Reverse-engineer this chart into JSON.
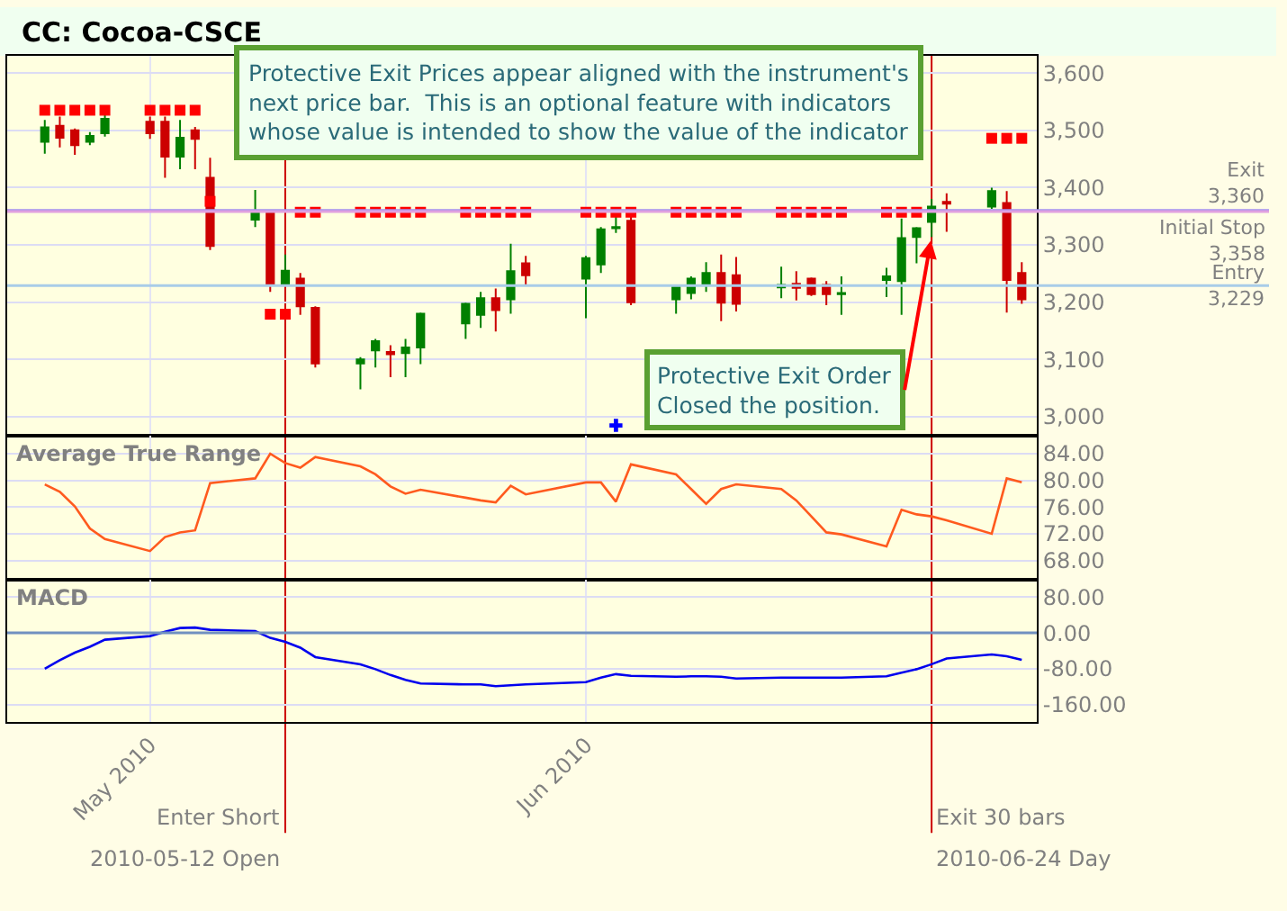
{
  "chart_data": [
    {
      "type": "candlestick",
      "title": "CC: Cocoa-CSCE",
      "x": [
        "2010-04-26",
        "2010-04-27",
        "2010-04-28",
        "2010-04-29",
        "2010-04-30",
        "2010-05-03",
        "2010-05-04",
        "2010-05-05",
        "2010-05-06",
        "2010-05-07",
        "2010-05-10",
        "2010-05-11",
        "2010-05-12",
        "2010-05-13",
        "2010-05-14",
        "2010-05-17",
        "2010-05-18",
        "2010-05-19",
        "2010-05-20",
        "2010-05-21",
        "2010-05-24",
        "2010-05-25",
        "2010-05-26",
        "2010-05-27",
        "2010-05-28",
        "2010-06-01",
        "2010-06-02",
        "2010-06-03",
        "2010-06-04",
        "2010-06-07",
        "2010-06-08",
        "2010-06-09",
        "2010-06-10",
        "2010-06-11",
        "2010-06-14",
        "2010-06-15",
        "2010-06-16",
        "2010-06-17",
        "2010-06-18",
        "2010-06-21",
        "2010-06-22",
        "2010-06-23",
        "2010-06-24",
        "2010-06-25",
        "2010-06-28",
        "2010-06-29",
        "2010-06-30"
      ],
      "ohlc": [
        [
          3480,
          3518,
          3459,
          3505
        ],
        [
          3508,
          3524,
          3470,
          3487
        ],
        [
          3500,
          3503,
          3457,
          3474
        ],
        [
          3480,
          3497,
          3474,
          3490
        ],
        [
          3495,
          3529,
          3489,
          3520
        ],
        [
          3515,
          3524,
          3485,
          3495
        ],
        [
          3515,
          3524,
          3417,
          3454
        ],
        [
          3454,
          3518,
          3432,
          3487
        ],
        [
          3500,
          3506,
          3432,
          3485
        ],
        [
          3417,
          3452,
          3291,
          3298
        ],
        [
          3344,
          3396,
          3331,
          3357
        ],
        [
          3357,
          3361,
          3218,
          3230
        ],
        [
          3230,
          3283,
          3228,
          3255
        ],
        [
          3241,
          3251,
          3178,
          3193
        ],
        [
          3190,
          3193,
          3086,
          3093
        ],
        [
          3093,
          3104,
          3048,
          3100
        ],
        [
          3116,
          3136,
          3086,
          3132
        ],
        [
          3113,
          3125,
          3069,
          3109
        ],
        [
          3111,
          3136,
          3069,
          3121
        ],
        [
          3121,
          3182,
          3092,
          3180
        ],
        [
          3163,
          3199,
          3136,
          3197
        ],
        [
          3178,
          3218,
          3155,
          3207
        ],
        [
          3207,
          3224,
          3149,
          3186
        ],
        [
          3205,
          3302,
          3180,
          3254
        ],
        [
          3268,
          3281,
          3228,
          3247
        ],
        [
          3241,
          3281,
          3172,
          3277
        ],
        [
          3266,
          3331,
          3251,
          3327
        ],
        [
          3329,
          3358,
          3321,
          3331
        ],
        [
          3342,
          3361,
          3195,
          3200
        ],
        [
          3205,
          3230,
          3180,
          3228
        ],
        [
          3216,
          3245,
          3205,
          3241
        ],
        [
          3232,
          3270,
          3218,
          3251
        ],
        [
          3251,
          3283,
          3167,
          3199
        ],
        [
          3247,
          3279,
          3184,
          3197
        ],
        [
          3226,
          3262,
          3207,
          3230
        ],
        [
          3232,
          3254,
          3203,
          3225
        ],
        [
          3241,
          3243,
          3211,
          3214
        ],
        [
          3230,
          3237,
          3195,
          3214
        ],
        [
          3214,
          3245,
          3178,
          3216
        ],
        [
          3239,
          3260,
          3209,
          3245
        ],
        [
          3237,
          3346,
          3178,
          3312
        ],
        [
          3314,
          3331,
          3268,
          3329
        ],
        [
          3340,
          3380,
          3314,
          3367
        ],
        [
          3375,
          3390,
          3323,
          3372
        ],
        [
          3367,
          3400,
          3363,
          3394
        ],
        [
          3373,
          3394,
          3182,
          3239
        ],
        [
          3251,
          3270,
          3197,
          3205
        ]
      ],
      "colors": [
        "#008000",
        "#cc0000",
        "#cc0000",
        "#008000",
        "#008000",
        "#cc0000",
        "#cc0000",
        "#008000",
        "#cc0000",
        "#cc0000",
        "#008000",
        "#cc0000",
        "#008000",
        "#cc0000",
        "#cc0000",
        "#008000",
        "#008000",
        "#cc0000",
        "#008000",
        "#008000",
        "#008000",
        "#008000",
        "#cc0000",
        "#008000",
        "#cc0000",
        "#008000",
        "#008000",
        "#008000",
        "#cc0000",
        "#008000",
        "#008000",
        "#008000",
        "#cc0000",
        "#cc0000",
        "#008000",
        "#cc0000",
        "#cc0000",
        "#cc0000",
        "#008000",
        "#008000",
        "#008000",
        "#008000",
        "#008000",
        "#cc0000",
        "#008000",
        "#cc0000",
        "#cc0000"
      ],
      "series": [
        {
          "type": "scatter",
          "marker": "square",
          "color": "#ff0000",
          "values": [
            3535,
            3535,
            3535,
            3535,
            3535,
            3535,
            3535,
            3535,
            3535,
            3376,
            null,
            3179,
            3179,
            3357,
            3357,
            3357,
            3357,
            3357,
            3357,
            3357,
            3357,
            3357,
            3357,
            3357,
            3357,
            3357,
            3357,
            3357,
            3357,
            3357,
            3357,
            3357,
            3357,
            3357,
            3357,
            3357,
            3357,
            3357,
            3357,
            3357,
            3357,
            3357,
            null,
            null,
            3486,
            3486,
            3486
          ]
        },
        {
          "type": "scatter",
          "marker": "cross",
          "color": "#0000ff",
          "x": [
            "2010-06-03"
          ],
          "values": [
            2985
          ]
        }
      ],
      "xlim": [
        "2010-04-23T12:00",
        "2010-07-01T00:00"
      ],
      "xticks": [
        {
          "value": "2010-05-03",
          "label": null
        },
        {
          "value": "2010-06-01",
          "label": null
        }
      ],
      "ylim": [
        2967,
        3630
      ],
      "yticks": [
        {
          "value": 3000,
          "label": "3,000"
        },
        {
          "value": 3100,
          "label": "3,100"
        },
        {
          "value": 3200,
          "label": "3,200"
        },
        {
          "value": 3300,
          "label": "3,300"
        },
        {
          "value": 3400,
          "label": "3,400"
        },
        {
          "value": 3500,
          "label": "3,500"
        },
        {
          "value": 3600,
          "label": "3,600"
        }
      ],
      "tick_labels": "y",
      "grid": true,
      "ref_lines": [
        {
          "axis": "y",
          "value": 3360,
          "label": "Exit 3,360",
          "color": "#a090f0"
        },
        {
          "axis": "y",
          "value": 3358,
          "label": "Initial Stop 3,358",
          "color": "#e0a0e0"
        },
        {
          "axis": "y",
          "value": 3229,
          "label": "Entry 3,229",
          "color": "#a8cce8"
        },
        {
          "axis": "x",
          "value": "2010-05-12",
          "color": "#cc0000"
        },
        {
          "axis": "x",
          "value": "2010-06-24",
          "color": "#cc0000"
        }
      ],
      "annotations": [
        "Protective Exit Prices appear aligned with the instrument's next price bar.  This is an optional feature with indicators whose value is intended to show the value of the indicator",
        {
          "text": "Protective Exit Order Closed the position.",
          "x": "2010-06-24",
          "y": 3314
        }
      ]
    },
    {
      "type": "line",
      "title": "Average True Range",
      "x": [
        "2010-04-26",
        "2010-04-27",
        "2010-04-28",
        "2010-04-29",
        "2010-04-30",
        "2010-05-03",
        "2010-05-04",
        "2010-05-05",
        "2010-05-06",
        "2010-05-07",
        "2010-05-10",
        "2010-05-11",
        "2010-05-12",
        "2010-05-13",
        "2010-05-14",
        "2010-05-17",
        "2010-05-18",
        "2010-05-19",
        "2010-05-20",
        "2010-05-21",
        "2010-05-24",
        "2010-05-25",
        "2010-05-26",
        "2010-05-27",
        "2010-05-28",
        "2010-06-01",
        "2010-06-02",
        "2010-06-03",
        "2010-06-04",
        "2010-06-07",
        "2010-06-08",
        "2010-06-09",
        "2010-06-10",
        "2010-06-11",
        "2010-06-14",
        "2010-06-15",
        "2010-06-16",
        "2010-06-17",
        "2010-06-18",
        "2010-06-21",
        "2010-06-22",
        "2010-06-23",
        "2010-06-24",
        "2010-06-25",
        "2010-06-28",
        "2010-06-29",
        "2010-06-30"
      ],
      "series": [
        {
          "color": "#ff5a1e",
          "values": [
            79.4,
            78.3,
            76.1,
            72.8,
            71.2,
            69.4,
            71.5,
            72.2,
            72.5,
            79.6,
            80.3,
            84.0,
            82.6,
            81.9,
            83.5,
            82.1,
            80.9,
            79.1,
            78.0,
            78.6,
            77.4,
            77.0,
            76.7,
            79.2,
            77.9,
            79.7,
            79.7,
            76.8,
            82.4,
            80.9,
            78.7,
            76.5,
            78.7,
            79.4,
            78.7,
            77.0,
            74.6,
            72.2,
            71.9,
            70.1,
            75.6,
            74.9,
            74.6,
            74.0,
            72.0,
            80.3,
            79.7
          ]
        }
      ],
      "xlim": [
        "2010-04-23T12:00",
        "2010-07-01T00:00"
      ],
      "xticks": [
        {
          "value": "2010-05-03",
          "label": null
        },
        {
          "value": "2010-06-01",
          "label": null
        }
      ],
      "ylim": [
        65.1,
        86.7
      ],
      "yticks": [
        {
          "value": 68,
          "label": "68.00"
        },
        {
          "value": 72,
          "label": "72.00"
        },
        {
          "value": 76,
          "label": "76.00"
        },
        {
          "value": 80,
          "label": "80.00"
        },
        {
          "value": 84,
          "label": "84.00"
        }
      ],
      "tick_labels": "y",
      "grid": true,
      "ref_lines": [
        {
          "axis": "x",
          "value": "2010-05-12",
          "color": "#cc0000"
        },
        {
          "axis": "x",
          "value": "2010-06-24",
          "color": "#cc0000"
        }
      ]
    },
    {
      "type": "line",
      "title": "MACD",
      "x": [
        "2010-04-26",
        "2010-04-27",
        "2010-04-28",
        "2010-04-29",
        "2010-04-30",
        "2010-05-03",
        "2010-05-04",
        "2010-05-05",
        "2010-05-06",
        "2010-05-07",
        "2010-05-10",
        "2010-05-11",
        "2010-05-12",
        "2010-05-13",
        "2010-05-14",
        "2010-05-17",
        "2010-05-18",
        "2010-05-19",
        "2010-05-20",
        "2010-05-21",
        "2010-05-24",
        "2010-05-25",
        "2010-05-26",
        "2010-05-27",
        "2010-05-28",
        "2010-06-01",
        "2010-06-02",
        "2010-06-03",
        "2010-06-04",
        "2010-06-07",
        "2010-06-08",
        "2010-06-09",
        "2010-06-10",
        "2010-06-11",
        "2010-06-14",
        "2010-06-15",
        "2010-06-16",
        "2010-06-17",
        "2010-06-18",
        "2010-06-21",
        "2010-06-22",
        "2010-06-23",
        "2010-06-24",
        "2010-06-25",
        "2010-06-28",
        "2010-06-29",
        "2010-06-30"
      ],
      "series": [
        {
          "color": "#0000ee",
          "values": [
            -80,
            -61,
            -44,
            -31,
            -15,
            -7,
            3,
            11,
            12,
            7,
            4,
            -11,
            -20,
            -33,
            -54,
            -70,
            -81,
            -94,
            -105,
            -113,
            -115,
            -115,
            -119,
            -117,
            -115,
            -110,
            -100,
            -92,
            -96,
            -98,
            -97,
            -97,
            -98,
            -102,
            -100,
            -100,
            -100,
            -100,
            -100,
            -97,
            -89,
            -81,
            -70,
            -57,
            -48,
            -52,
            -60
          ]
        }
      ],
      "xlim": [
        "2010-04-23T12:00",
        "2010-07-01T00:00"
      ],
      "xticks": [
        {
          "value": "2010-05-03",
          "label": "May 2010"
        },
        {
          "value": "2010-06-01",
          "label": "Jun 2010"
        }
      ],
      "ylim": [
        -199,
        119
      ],
      "yticks": [
        {
          "value": -160,
          "label": "-160.00"
        },
        {
          "value": -80,
          "label": "-80.00"
        },
        {
          "value": 0,
          "label": "0.00"
        },
        {
          "value": 80,
          "label": "80.00"
        }
      ],
      "grid": true,
      "ref_lines": [
        {
          "axis": "y",
          "value": 0,
          "color": "#7090c0"
        },
        {
          "axis": "x",
          "value": "2010-05-12",
          "label": "Enter Short",
          "color": "#cc0000"
        },
        {
          "axis": "x",
          "value": "2010-06-24",
          "label": "Exit 30 bars",
          "color": "#cc0000"
        }
      ],
      "annotations": [
        "2010-05-12 Open",
        "2010-06-24 Day"
      ]
    }
  ]
}
